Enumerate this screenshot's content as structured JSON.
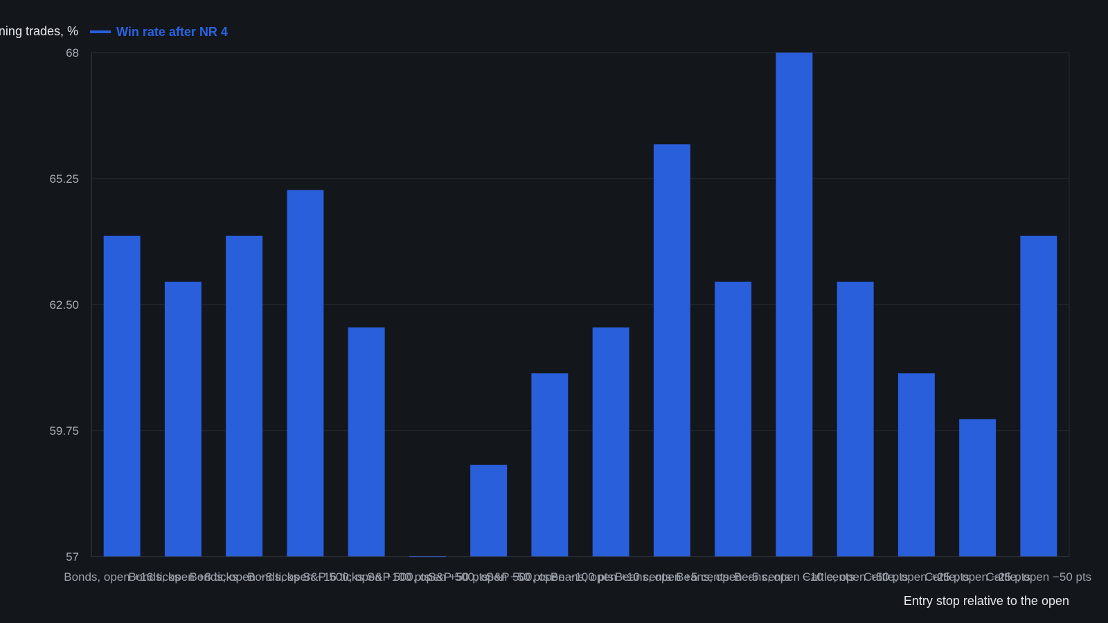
{
  "chart_data": {
    "type": "bar",
    "ylabel": "Winning trades, %",
    "xlabel": "Entry stop relative to the open",
    "ylim": [
      57,
      68
    ],
    "yticks": [
      "57",
      "59.75",
      "62.50",
      "65.25",
      "68"
    ],
    "grid": true,
    "legend_position": "top-left",
    "series": [
      {
        "name": "Win rate after NR 4",
        "color": "#2a5fdc",
        "values": [
          64.0,
          63.0,
          64.0,
          65.0,
          62.0,
          57.0,
          59.0,
          61.0,
          62.0,
          66.0,
          63.0,
          68.0,
          63.0,
          61.0,
          60.0,
          64.0
        ]
      }
    ],
    "categories": [
      "Bonds, open +16 ticks",
      "Bonds, open +8 ticks",
      "Bonds, open −8 ticks",
      "Bonds, open −16 ticks",
      "S&P 500, open +100 pts",
      "S&P 500, open +50 pts",
      "S&P 500, open −50 pts",
      "S&P 500, open −100 pts",
      "Beans, open +10 cents",
      "Beans, open +5 cents",
      "Beans, open −5 cents",
      "Beans, open −10 cents",
      "Cattle, open +50 pts",
      "Cattle, open +25 pts",
      "Cattle, open −25 pts",
      "Cattle, open −50 pts"
    ]
  },
  "colors": {
    "background": "#13161b",
    "grid": "#2a2e35",
    "bar": "#2a5fdc",
    "legend_text": "#2a63e0"
  }
}
